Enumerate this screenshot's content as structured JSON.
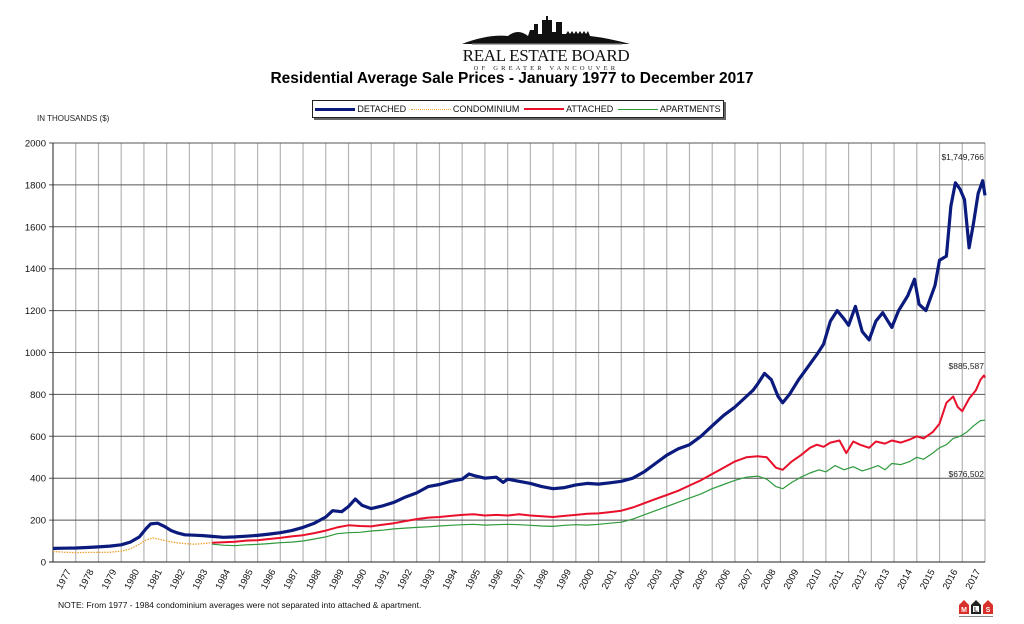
{
  "logo": {
    "title": "REAL ESTATE BOARD",
    "subtitle": "OF GREATER VANCOUVER",
    "icon": "city-skyline-icon"
  },
  "header": {
    "title": "Residential Average Sale Prices  -  January 1977 to December 2017",
    "units_label": "IN THOUSANDS ($)"
  },
  "legend": [
    {
      "label": "DETACHED",
      "color": "#0b1a7d",
      "style": "solid-thick"
    },
    {
      "label": "CONDOMINIUM",
      "color": "#f0a030",
      "style": "dotted"
    },
    {
      "label": "ATTACHED",
      "color": "#e8102a",
      "style": "solid"
    },
    {
      "label": "APARTMENTS",
      "color": "#2e9a3c",
      "style": "solid-thin"
    }
  ],
  "annotations": {
    "detached_last": "$1,749,766",
    "attached_last": "$885,587",
    "apartments_last": "$676,502"
  },
  "footer": {
    "note": "NOTE:  From 1977 - 1984 condominium averages were not separated into attached & apartment.",
    "mls_logo": "MLS",
    "mls_icon": "mls-logo-icon"
  },
  "chart_data": {
    "type": "line",
    "title": "Residential Average Sale Prices - January 1977 to December 2017",
    "xlabel": "",
    "ylabel": "IN THOUSANDS ($)",
    "ylim": [
      0,
      2000
    ],
    "yticks": [
      0,
      200,
      400,
      600,
      800,
      1000,
      1200,
      1400,
      1600,
      1800,
      2000
    ],
    "xticks": [
      "1977",
      "1978",
      "1979",
      "1980",
      "1981",
      "1982",
      "1983",
      "1984",
      "1985",
      "1986",
      "1987",
      "1988",
      "1989",
      "1990",
      "1991",
      "1992",
      "1993",
      "1994",
      "1995",
      "1996",
      "1997",
      "1998",
      "1999",
      "2000",
      "2001",
      "2002",
      "2003",
      "2004",
      "2005",
      "2006",
      "2007",
      "2008",
      "2009",
      "2010",
      "2011",
      "2012",
      "2013",
      "2014",
      "2015",
      "2016",
      "2017"
    ],
    "xlim": [
      1977.0,
      2018.0
    ],
    "grid": true,
    "legend_position": "top",
    "series": [
      {
        "name": "DETACHED",
        "color": "#0b1a7d",
        "width": 3.2,
        "points": [
          [
            1977.0,
            65
          ],
          [
            1977.5,
            66
          ],
          [
            1978.0,
            67
          ],
          [
            1978.5,
            69
          ],
          [
            1979.0,
            72
          ],
          [
            1979.5,
            76
          ],
          [
            1980.0,
            82
          ],
          [
            1980.4,
            95
          ],
          [
            1980.8,
            120
          ],
          [
            1981.1,
            160
          ],
          [
            1981.3,
            182
          ],
          [
            1981.6,
            185
          ],
          [
            1981.9,
            170
          ],
          [
            1982.2,
            150
          ],
          [
            1982.5,
            138
          ],
          [
            1982.8,
            130
          ],
          [
            1983.2,
            128
          ],
          [
            1983.6,
            126
          ],
          [
            1984.0,
            122
          ],
          [
            1984.5,
            118
          ],
          [
            1985.0,
            120
          ],
          [
            1985.5,
            123
          ],
          [
            1986.0,
            127
          ],
          [
            1986.5,
            133
          ],
          [
            1987.0,
            140
          ],
          [
            1987.5,
            150
          ],
          [
            1988.0,
            165
          ],
          [
            1988.5,
            185
          ],
          [
            1989.0,
            215
          ],
          [
            1989.3,
            245
          ],
          [
            1989.7,
            240
          ],
          [
            1990.0,
            265
          ],
          [
            1990.3,
            300
          ],
          [
            1990.6,
            270
          ],
          [
            1991.0,
            255
          ],
          [
            1991.5,
            268
          ],
          [
            1992.0,
            285
          ],
          [
            1992.5,
            310
          ],
          [
            1993.0,
            330
          ],
          [
            1993.5,
            360
          ],
          [
            1994.0,
            370
          ],
          [
            1994.5,
            385
          ],
          [
            1995.0,
            395
          ],
          [
            1995.3,
            420
          ],
          [
            1995.6,
            410
          ],
          [
            1996.0,
            400
          ],
          [
            1996.5,
            405
          ],
          [
            1996.8,
            380
          ],
          [
            1997.0,
            395
          ],
          [
            1997.5,
            385
          ],
          [
            1998.0,
            375
          ],
          [
            1998.5,
            360
          ],
          [
            1999.0,
            350
          ],
          [
            1999.5,
            355
          ],
          [
            2000.0,
            368
          ],
          [
            2000.5,
            375
          ],
          [
            2001.0,
            372
          ],
          [
            2001.5,
            378
          ],
          [
            2002.0,
            385
          ],
          [
            2002.5,
            400
          ],
          [
            2003.0,
            430
          ],
          [
            2003.5,
            470
          ],
          [
            2004.0,
            510
          ],
          [
            2004.5,
            540
          ],
          [
            2005.0,
            560
          ],
          [
            2005.5,
            600
          ],
          [
            2006.0,
            650
          ],
          [
            2006.5,
            700
          ],
          [
            2007.0,
            740
          ],
          [
            2007.5,
            790
          ],
          [
            2007.8,
            820
          ],
          [
            2008.0,
            850
          ],
          [
            2008.3,
            900
          ],
          [
            2008.6,
            870
          ],
          [
            2008.9,
            790
          ],
          [
            2009.1,
            760
          ],
          [
            2009.4,
            800
          ],
          [
            2009.8,
            870
          ],
          [
            2010.2,
            930
          ],
          [
            2010.6,
            990
          ],
          [
            2010.9,
            1040
          ],
          [
            2011.2,
            1150
          ],
          [
            2011.5,
            1200
          ],
          [
            2011.8,
            1160
          ],
          [
            2012.0,
            1130
          ],
          [
            2012.3,
            1220
          ],
          [
            2012.6,
            1100
          ],
          [
            2012.9,
            1060
          ],
          [
            2013.2,
            1150
          ],
          [
            2013.5,
            1190
          ],
          [
            2013.9,
            1120
          ],
          [
            2014.2,
            1200
          ],
          [
            2014.6,
            1270
          ],
          [
            2014.9,
            1350
          ],
          [
            2015.1,
            1230
          ],
          [
            2015.4,
            1200
          ],
          [
            2015.8,
            1320
          ],
          [
            2016.0,
            1440
          ],
          [
            2016.3,
            1460
          ],
          [
            2016.5,
            1700
          ],
          [
            2016.7,
            1810
          ],
          [
            2016.9,
            1780
          ],
          [
            2017.1,
            1730
          ],
          [
            2017.3,
            1500
          ],
          [
            2017.5,
            1620
          ],
          [
            2017.7,
            1760
          ],
          [
            2017.9,
            1820
          ],
          [
            2018.0,
            1750
          ]
        ]
      },
      {
        "name": "CONDOMINIUM",
        "color": "#f0a030",
        "width": 1.3,
        "points": [
          [
            1977.0,
            50
          ],
          [
            1977.5,
            47
          ],
          [
            1978.0,
            45
          ],
          [
            1978.5,
            46
          ],
          [
            1979.0,
            46
          ],
          [
            1979.5,
            47
          ],
          [
            1980.0,
            52
          ],
          [
            1980.4,
            62
          ],
          [
            1980.8,
            85
          ],
          [
            1981.1,
            105
          ],
          [
            1981.4,
            115
          ],
          [
            1981.7,
            108
          ],
          [
            1982.0,
            100
          ],
          [
            1982.4,
            92
          ],
          [
            1982.8,
            88
          ],
          [
            1983.2,
            85
          ],
          [
            1983.6,
            88
          ],
          [
            1984.0,
            92
          ],
          [
            1984.5,
            95
          ]
        ]
      },
      {
        "name": "ATTACHED",
        "color": "#e8102a",
        "width": 2.0,
        "points": [
          [
            1984.0,
            92
          ],
          [
            1984.5,
            94
          ],
          [
            1985.0,
            97
          ],
          [
            1985.5,
            102
          ],
          [
            1986.0,
            104
          ],
          [
            1986.5,
            110
          ],
          [
            1987.0,
            115
          ],
          [
            1987.5,
            122
          ],
          [
            1988.0,
            128
          ],
          [
            1988.5,
            138
          ],
          [
            1989.0,
            150
          ],
          [
            1989.5,
            165
          ],
          [
            1990.0,
            175
          ],
          [
            1990.5,
            172
          ],
          [
            1991.0,
            170
          ],
          [
            1991.5,
            178
          ],
          [
            1992.0,
            185
          ],
          [
            1992.5,
            195
          ],
          [
            1993.0,
            205
          ],
          [
            1993.5,
            212
          ],
          [
            1994.0,
            215
          ],
          [
            1994.5,
            220
          ],
          [
            1995.0,
            225
          ],
          [
            1995.5,
            228
          ],
          [
            1996.0,
            222
          ],
          [
            1996.5,
            225
          ],
          [
            1997.0,
            222
          ],
          [
            1997.5,
            228
          ],
          [
            1998.0,
            222
          ],
          [
            1998.5,
            218
          ],
          [
            1999.0,
            215
          ],
          [
            1999.5,
            220
          ],
          [
            2000.0,
            225
          ],
          [
            2000.5,
            230
          ],
          [
            2001.0,
            232
          ],
          [
            2001.5,
            238
          ],
          [
            2002.0,
            245
          ],
          [
            2002.5,
            260
          ],
          [
            2003.0,
            280
          ],
          [
            2003.5,
            300
          ],
          [
            2004.0,
            320
          ],
          [
            2004.5,
            340
          ],
          [
            2005.0,
            365
          ],
          [
            2005.5,
            390
          ],
          [
            2006.0,
            420
          ],
          [
            2006.5,
            450
          ],
          [
            2007.0,
            480
          ],
          [
            2007.5,
            500
          ],
          [
            2008.0,
            505
          ],
          [
            2008.4,
            500
          ],
          [
            2008.8,
            450
          ],
          [
            2009.1,
            440
          ],
          [
            2009.5,
            480
          ],
          [
            2009.9,
            510
          ],
          [
            2010.3,
            545
          ],
          [
            2010.6,
            560
          ],
          [
            2010.9,
            550
          ],
          [
            2011.2,
            570
          ],
          [
            2011.6,
            580
          ],
          [
            2011.9,
            520
          ],
          [
            2012.2,
            575
          ],
          [
            2012.5,
            560
          ],
          [
            2012.9,
            545
          ],
          [
            2013.2,
            575
          ],
          [
            2013.6,
            565
          ],
          [
            2013.9,
            580
          ],
          [
            2014.3,
            570
          ],
          [
            2014.7,
            585
          ],
          [
            2015.0,
            600
          ],
          [
            2015.3,
            590
          ],
          [
            2015.7,
            620
          ],
          [
            2016.0,
            660
          ],
          [
            2016.3,
            760
          ],
          [
            2016.6,
            790
          ],
          [
            2016.8,
            740
          ],
          [
            2017.0,
            720
          ],
          [
            2017.3,
            780
          ],
          [
            2017.6,
            820
          ],
          [
            2017.8,
            870
          ],
          [
            2017.95,
            890
          ],
          [
            2018.0,
            880
          ]
        ]
      },
      {
        "name": "APARTMENTS",
        "color": "#2e9a3c",
        "width": 1.2,
        "points": [
          [
            1984.0,
            85
          ],
          [
            1984.5,
            80
          ],
          [
            1985.0,
            78
          ],
          [
            1985.5,
            82
          ],
          [
            1986.0,
            84
          ],
          [
            1986.5,
            88
          ],
          [
            1987.0,
            92
          ],
          [
            1987.5,
            95
          ],
          [
            1988.0,
            100
          ],
          [
            1988.5,
            110
          ],
          [
            1989.0,
            120
          ],
          [
            1989.5,
            135
          ],
          [
            1990.0,
            140
          ],
          [
            1990.5,
            142
          ],
          [
            1991.0,
            148
          ],
          [
            1991.5,
            152
          ],
          [
            1992.0,
            158
          ],
          [
            1992.5,
            162
          ],
          [
            1993.0,
            165
          ],
          [
            1993.5,
            168
          ],
          [
            1994.0,
            172
          ],
          [
            1994.5,
            175
          ],
          [
            1995.0,
            178
          ],
          [
            1995.5,
            180
          ],
          [
            1996.0,
            176
          ],
          [
            1996.5,
            178
          ],
          [
            1997.0,
            180
          ],
          [
            1997.5,
            178
          ],
          [
            1998.0,
            175
          ],
          [
            1998.5,
            172
          ],
          [
            1999.0,
            170
          ],
          [
            1999.5,
            175
          ],
          [
            2000.0,
            178
          ],
          [
            2000.5,
            176
          ],
          [
            2001.0,
            180
          ],
          [
            2001.5,
            185
          ],
          [
            2002.0,
            190
          ],
          [
            2002.5,
            205
          ],
          [
            2003.0,
            225
          ],
          [
            2003.5,
            245
          ],
          [
            2004.0,
            265
          ],
          [
            2004.5,
            285
          ],
          [
            2005.0,
            305
          ],
          [
            2005.5,
            325
          ],
          [
            2006.0,
            350
          ],
          [
            2006.5,
            370
          ],
          [
            2007.0,
            390
          ],
          [
            2007.5,
            405
          ],
          [
            2008.0,
            410
          ],
          [
            2008.4,
            395
          ],
          [
            2008.8,
            360
          ],
          [
            2009.1,
            350
          ],
          [
            2009.5,
            380
          ],
          [
            2009.9,
            405
          ],
          [
            2010.3,
            425
          ],
          [
            2010.7,
            440
          ],
          [
            2011.0,
            430
          ],
          [
            2011.4,
            460
          ],
          [
            2011.8,
            440
          ],
          [
            2012.2,
            455
          ],
          [
            2012.6,
            435
          ],
          [
            2012.9,
            445
          ],
          [
            2013.3,
            460
          ],
          [
            2013.6,
            440
          ],
          [
            2013.9,
            470
          ],
          [
            2014.3,
            465
          ],
          [
            2014.7,
            480
          ],
          [
            2015.0,
            500
          ],
          [
            2015.3,
            490
          ],
          [
            2015.7,
            520
          ],
          [
            2016.0,
            545
          ],
          [
            2016.3,
            560
          ],
          [
            2016.6,
            590
          ],
          [
            2016.9,
            600
          ],
          [
            2017.2,
            620
          ],
          [
            2017.5,
            650
          ],
          [
            2017.8,
            675
          ],
          [
            2018.0,
            677
          ]
        ]
      }
    ]
  }
}
